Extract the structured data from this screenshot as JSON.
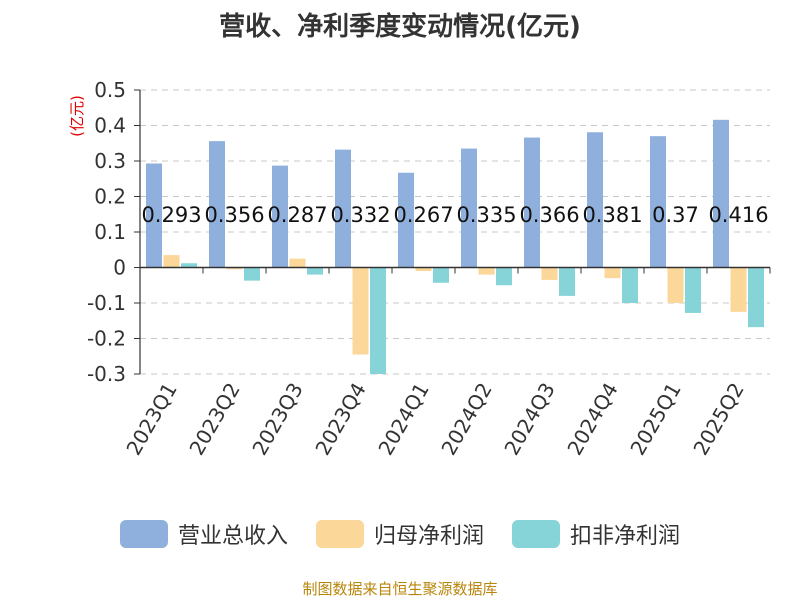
{
  "chart_data": {
    "type": "bar",
    "title": "营收、净利季度变动情况(亿元)",
    "ylabel": "(亿元)",
    "xlabel": "",
    "ylim": [
      -0.3,
      0.5
    ],
    "yticks": [
      0.5,
      0.4,
      0.3,
      0.2,
      0.1,
      0,
      -0.1,
      -0.2,
      -0.3
    ],
    "grid": true,
    "legend_position": "bottom",
    "categories": [
      "2023Q1",
      "2023Q2",
      "2023Q3",
      "2023Q4",
      "2024Q1",
      "2024Q2",
      "2024Q3",
      "2024Q4",
      "2025Q1",
      "2025Q2"
    ],
    "series": [
      {
        "name": "营业总收入",
        "color": "#8fb0dc",
        "values": [
          0.293,
          0.356,
          0.287,
          0.332,
          0.267,
          0.335,
          0.366,
          0.381,
          0.37,
          0.416
        ],
        "labels_shown": true
      },
      {
        "name": "归母净利润",
        "color": "#fcd79a",
        "values": [
          0.035,
          -0.005,
          0.025,
          -0.245,
          -0.01,
          -0.02,
          -0.035,
          -0.03,
          -0.1,
          -0.125
        ],
        "labels_shown": false
      },
      {
        "name": "扣非净利润",
        "color": "#86d4d8",
        "values": [
          0.012,
          -0.037,
          -0.02,
          -0.3,
          -0.043,
          -0.05,
          -0.08,
          -0.1,
          -0.128,
          -0.168
        ],
        "labels_shown": false
      }
    ]
  },
  "source": "制图数据来自恒生聚源数据库"
}
